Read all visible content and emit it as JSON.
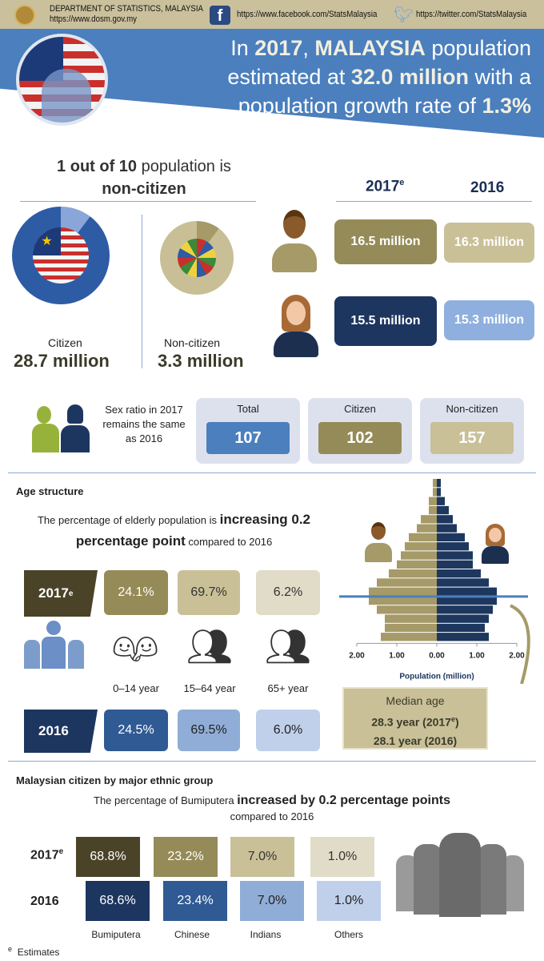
{
  "header": {
    "org": "DEPARTMENT OF STATISTICS, MALAYSIA",
    "website": "https://www.dosm.gov.my",
    "facebook": "https://www.facebook.com/StatsMalaysia",
    "twitter": "https://twitter.com/StatsMalaysia"
  },
  "headline": {
    "l1a": "In ",
    "year": "2017",
    "l1b": ", ",
    "country": "MALAYSIA",
    "l1c": " population",
    "l2a": "estimated at ",
    "pop": "32.0 million",
    "l2b": " with a",
    "l3a": "population growth rate of ",
    "rate": "1.3%"
  },
  "citizenship": {
    "title_bold": "1 out of 10",
    "title_rest": " population is",
    "title_line2": "non-citizen",
    "citizen_label": "Citizen",
    "citizen_value": "28.7 million",
    "noncitizen_label": "Non-citizen",
    "noncitizen_value": "3.3 million",
    "noncitizen_share": 0.103
  },
  "gender": {
    "year1": "2017",
    "year1_sup": "e",
    "year2": "2016",
    "male_2017": "16.5 million",
    "male_2016": "16.3 million",
    "female_2017": "15.5 million",
    "female_2016": "15.3 million"
  },
  "sex_ratio": {
    "text": "Sex ratio in 2017 remains the same as 2016",
    "items": [
      {
        "label": "Total",
        "value": "107"
      },
      {
        "label": "Citizen",
        "value": "102"
      },
      {
        "label": "Non-citizen",
        "value": "157"
      }
    ]
  },
  "age": {
    "title": "Age structure",
    "sentence_a": "The percentage of elderly population is ",
    "sentence_bold": "increasing 0.2 percentage point",
    "sentence_b": " compared to 2016",
    "row2017": {
      "year": "2017",
      "sup": "e",
      "values": [
        "24.1%",
        "69.7%",
        "6.2%"
      ]
    },
    "row2016": {
      "year": "2016",
      "values": [
        "24.5%",
        "69.5%",
        "6.0%"
      ]
    },
    "groups": [
      "0–14 year",
      "15–64 year",
      "65+ year"
    ],
    "median_title": "Median age",
    "median_2017a": "28.3 year (2017",
    "median_2017sup": "e",
    "median_2017b": ")",
    "median_2016": "28.1 year (2016)"
  },
  "chart_data": {
    "type": "bar",
    "orientation": "horizontal-pyramid",
    "xlabel": "Population (million)",
    "xticks": [
      "2.00",
      "1.00",
      "0.00",
      "1.00",
      "2.00"
    ],
    "xlim": [
      -2,
      2
    ],
    "series": [
      {
        "name": "Male",
        "color": "#a59a68",
        "values_top_to_bottom": [
          0.1,
          0.1,
          0.2,
          0.2,
          0.4,
          0.5,
          0.7,
          0.8,
          0.9,
          1.0,
          1.2,
          1.5,
          1.7,
          1.7,
          1.5,
          1.3,
          1.3,
          1.4
        ]
      },
      {
        "name": "Female",
        "color": "#1d375f",
        "values_top_to_bottom": [
          0.1,
          0.1,
          0.2,
          0.3,
          0.4,
          0.5,
          0.7,
          0.8,
          0.9,
          0.9,
          1.1,
          1.3,
          1.5,
          1.5,
          1.4,
          1.3,
          1.2,
          1.3
        ]
      }
    ]
  },
  "ethnic": {
    "title": "Malaysian citizen by major ethnic group",
    "sentence_a": "The percentage of Bumiputera ",
    "sentence_bold": "increased by 0.2 percentage points",
    "sentence_b": "compared to 2016",
    "row2017": {
      "year": "2017",
      "sup": "e",
      "values": [
        "68.8%",
        "23.2%",
        "7.0%",
        "1.0%"
      ]
    },
    "row2016": {
      "year": "2016",
      "values": [
        "68.6%",
        "23.4%",
        "7.0%",
        "1.0%"
      ]
    },
    "groups": [
      "Bumiputera",
      "Chinese",
      "Indians",
      "Others"
    ]
  },
  "footnote": {
    "mark": "e",
    "text": "Estimates"
  }
}
